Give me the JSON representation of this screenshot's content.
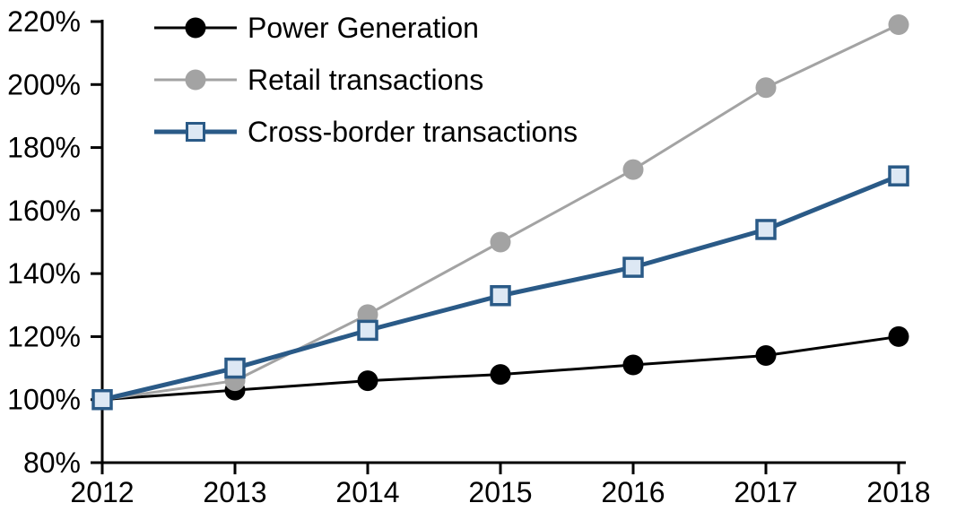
{
  "chart_data": {
    "type": "line",
    "title": "",
    "xlabel": "",
    "ylabel": "",
    "x": [
      2012,
      2013,
      2014,
      2015,
      2016,
      2017,
      2018
    ],
    "xtick_labels": [
      "2012",
      "2013",
      "2014",
      "2015",
      "2016",
      "2017",
      "2018"
    ],
    "ylim": [
      80,
      220
    ],
    "ytick_step": 20,
    "ytick_labels": [
      "80%",
      "100%",
      "120%",
      "140%",
      "160%",
      "180%",
      "200%",
      "220%"
    ],
    "grid": false,
    "legend_position": "top-left-inside",
    "axis_color": "#000000",
    "series": [
      {
        "name": "Power Generation",
        "values": [
          100,
          103,
          106,
          108,
          111,
          114,
          120
        ],
        "color": "#000000",
        "marker": "circle",
        "marker_fill": "#000000",
        "line_width": 3
      },
      {
        "name": "Retail transactions",
        "values": [
          100,
          106,
          127,
          150,
          173,
          199,
          219
        ],
        "color": "#a3a3a3",
        "marker": "circle",
        "marker_fill": "#a3a3a3",
        "line_width": 3
      },
      {
        "name": "Cross-border transactions",
        "values": [
          100,
          110,
          122,
          133,
          142,
          154,
          171
        ],
        "color": "#2a5a87",
        "marker": "square",
        "marker_fill": "#dde8f4",
        "line_width": 5
      }
    ]
  }
}
